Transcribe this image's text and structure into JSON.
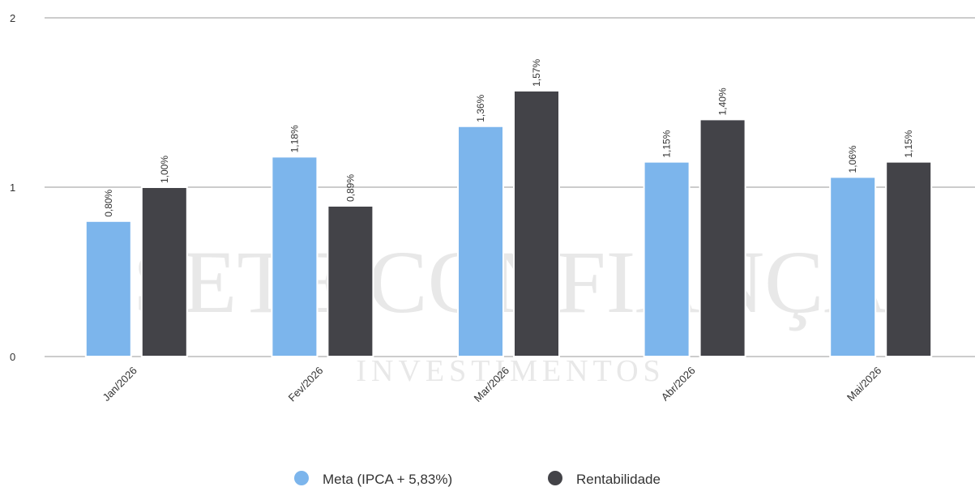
{
  "chart_data": {
    "type": "bar",
    "categories": [
      "Jan/2026",
      "Fev/2026",
      "Mar/2026",
      "Abr/2026",
      "Mai/2026"
    ],
    "series": [
      {
        "name": "Meta (IPCA + 5,83%)",
        "color": "#7cb5ec",
        "values": [
          0.8,
          1.18,
          1.36,
          1.15,
          1.06
        ],
        "value_labels": [
          "0,80%",
          "1,18%",
          "1,36%",
          "1,15%",
          "1,06%"
        ]
      },
      {
        "name": "Rentabilidade",
        "color": "#434348",
        "values": [
          1.0,
          0.89,
          1.57,
          1.4,
          1.15
        ],
        "value_labels": [
          "1,00%",
          "0,89%",
          "1,57%",
          "1,40%",
          "1,15%"
        ]
      }
    ],
    "ylim": [
      0,
      2
    ],
    "yticks": [
      0,
      1,
      2
    ],
    "grid": true,
    "legend": "bottom",
    "watermark": [
      "SETE CONFIANÇA",
      "INVESTIMENTOS"
    ]
  }
}
